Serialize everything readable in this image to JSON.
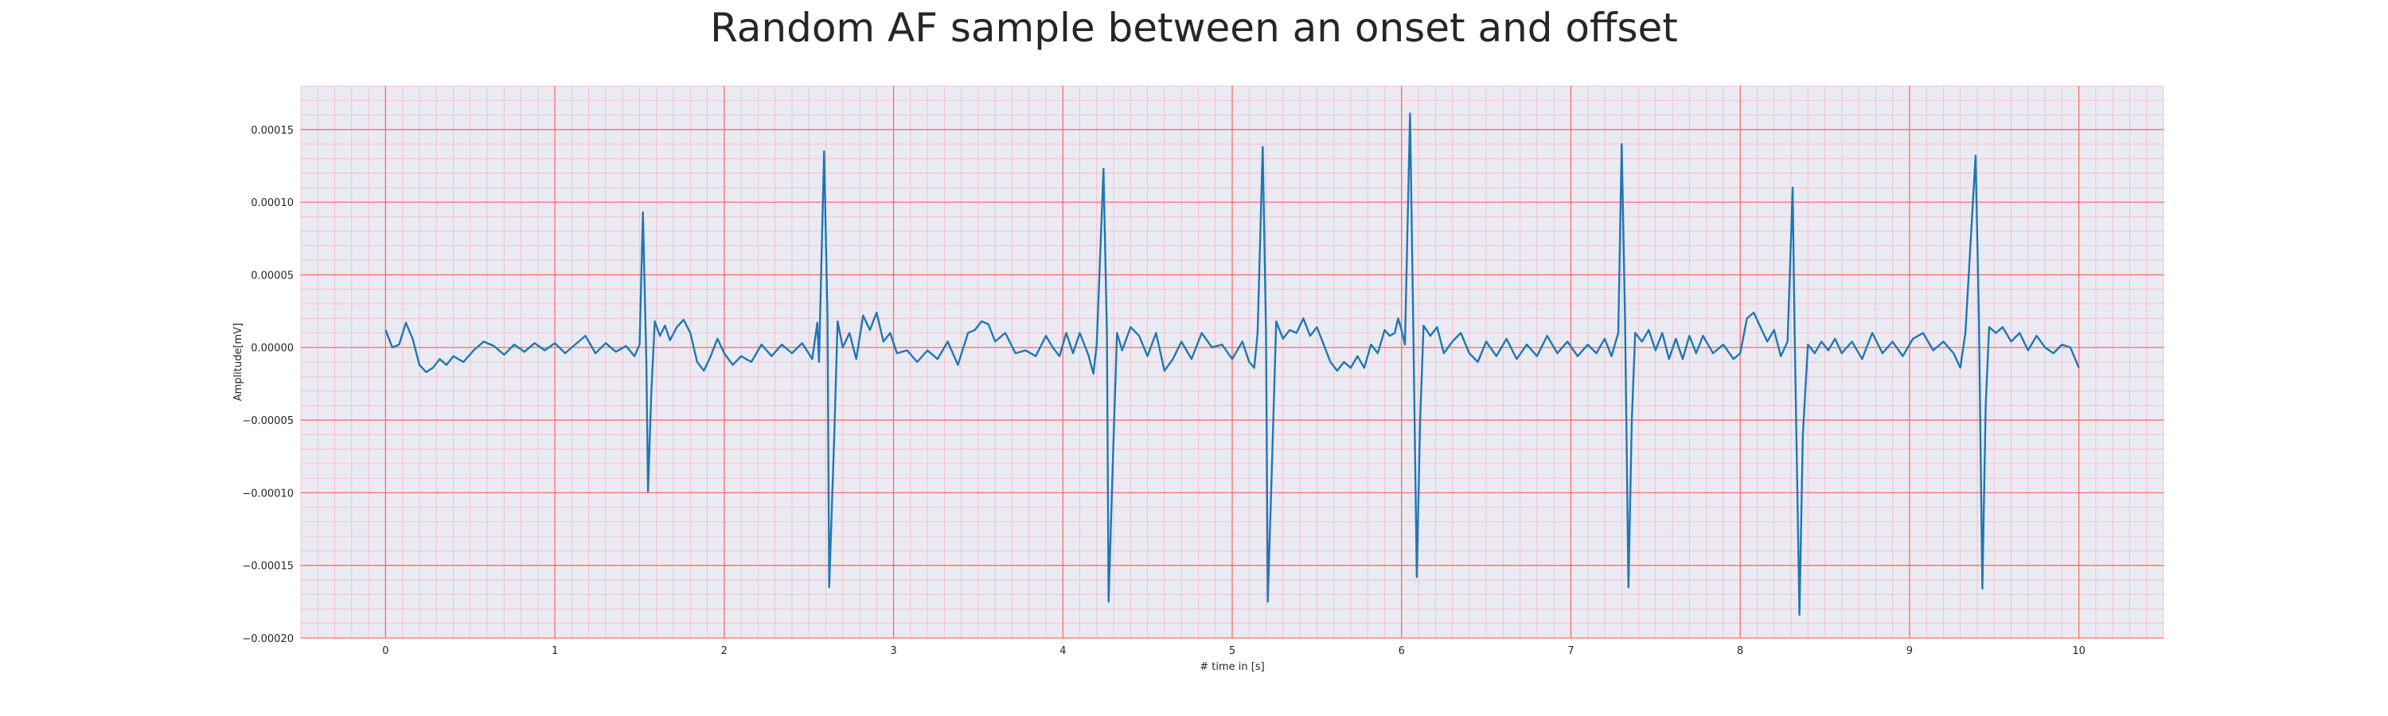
{
  "chart_data": {
    "type": "line",
    "title": "Random AF sample between an onset and offset",
    "xlabel": "# time in [s]",
    "ylabel": "Amplitude[mV]",
    "xlim": [
      -0.5,
      10.5
    ],
    "ylim": [
      -0.0002,
      0.00018
    ],
    "x_ticks": [
      "0",
      "1",
      "2",
      "3",
      "4",
      "5",
      "6",
      "7",
      "8",
      "9",
      "10"
    ],
    "y_ticks": [
      "0.00015",
      "0.00010",
      "0.00005",
      "0.00000",
      "−0.00005",
      "−0.00010",
      "−0.00015",
      "−0.00020"
    ],
    "grid": true,
    "minor_grid": true,
    "colors": {
      "background": "#eaeaf2",
      "major_grid": "#ff6b6b",
      "minor_grid": "#f6b8c4",
      "line": "#1f77b4"
    },
    "series": [
      {
        "points": [
          [
            0.0,
            1.2e-05
          ],
          [
            0.04,
            0.0
          ],
          [
            0.08,
            2e-06
          ],
          [
            0.12,
            1.7e-05
          ],
          [
            0.16,
            6e-06
          ],
          [
            0.2,
            -1.2e-05
          ],
          [
            0.24,
            -1.7e-05
          ],
          [
            0.28,
            -1.4e-05
          ],
          [
            0.32,
            -8e-06
          ],
          [
            0.36,
            -1.2e-05
          ],
          [
            0.4,
            -6e-06
          ],
          [
            0.46,
            -1e-05
          ],
          [
            0.52,
            -2e-06
          ],
          [
            0.58,
            4e-06
          ],
          [
            0.64,
            1e-06
          ],
          [
            0.7,
            -5e-06
          ],
          [
            0.76,
            2e-06
          ],
          [
            0.82,
            -3e-06
          ],
          [
            0.88,
            3e-06
          ],
          [
            0.94,
            -2e-06
          ],
          [
            1.0,
            3e-06
          ],
          [
            1.06,
            -4e-06
          ],
          [
            1.12,
            2e-06
          ],
          [
            1.18,
            8e-06
          ],
          [
            1.24,
            -4e-06
          ],
          [
            1.3,
            3e-06
          ],
          [
            1.36,
            -3e-06
          ],
          [
            1.42,
            1e-06
          ],
          [
            1.47,
            -6e-06
          ],
          [
            1.5,
            2e-06
          ],
          [
            1.52,
            9.3e-05
          ],
          [
            1.54,
            -1e-05
          ],
          [
            1.55,
            -9.9e-05
          ],
          [
            1.57,
            -3e-05
          ],
          [
            1.59,
            1.8e-05
          ],
          [
            1.62,
            8e-06
          ],
          [
            1.65,
            1.5e-05
          ],
          [
            1.68,
            5e-06
          ],
          [
            1.72,
            1.4e-05
          ],
          [
            1.76,
            1.9e-05
          ],
          [
            1.8,
            1e-05
          ],
          [
            1.84,
            -1e-05
          ],
          [
            1.88,
            -1.6e-05
          ],
          [
            1.92,
            -6e-06
          ],
          [
            1.96,
            6e-06
          ],
          [
            2.0,
            -4e-06
          ],
          [
            2.05,
            -1.2e-05
          ],
          [
            2.1,
            -6e-06
          ],
          [
            2.16,
            -1e-05
          ],
          [
            2.22,
            2e-06
          ],
          [
            2.28,
            -6e-06
          ],
          [
            2.34,
            2e-06
          ],
          [
            2.4,
            -4e-06
          ],
          [
            2.46,
            3e-06
          ],
          [
            2.52,
            -8e-06
          ],
          [
            2.55,
            1.7e-05
          ],
          [
            2.56,
            -1e-05
          ],
          [
            2.59,
            0.000135
          ],
          [
            2.61,
            2e-05
          ],
          [
            2.62,
            -0.000165
          ],
          [
            2.65,
            -6e-05
          ],
          [
            2.67,
            1.8e-05
          ],
          [
            2.7,
            0.0
          ],
          [
            2.74,
            1e-05
          ],
          [
            2.78,
            -8e-06
          ],
          [
            2.82,
            2.2e-05
          ],
          [
            2.86,
            1.2e-05
          ],
          [
            2.9,
            2.4e-05
          ],
          [
            2.94,
            4e-06
          ],
          [
            2.98,
            1e-05
          ],
          [
            3.02,
            -4e-06
          ],
          [
            3.08,
            -2e-06
          ],
          [
            3.14,
            -1e-05
          ],
          [
            3.2,
            -2e-06
          ],
          [
            3.26,
            -8e-06
          ],
          [
            3.32,
            4e-06
          ],
          [
            3.38,
            -1.2e-05
          ],
          [
            3.44,
            1e-05
          ],
          [
            3.48,
            1.2e-05
          ],
          [
            3.52,
            1.8e-05
          ],
          [
            3.56,
            1.6e-05
          ],
          [
            3.6,
            4e-06
          ],
          [
            3.66,
            1e-05
          ],
          [
            3.72,
            -4e-06
          ],
          [
            3.78,
            -2e-06
          ],
          [
            3.84,
            -6e-06
          ],
          [
            3.9,
            8e-06
          ],
          [
            3.94,
            0.0
          ],
          [
            3.98,
            -6e-06
          ],
          [
            4.02,
            1e-05
          ],
          [
            4.06,
            -4e-06
          ],
          [
            4.1,
            1e-05
          ],
          [
            4.15,
            -5e-06
          ],
          [
            4.18,
            -1.8e-05
          ],
          [
            4.2,
            2e-06
          ],
          [
            4.24,
            0.000123
          ],
          [
            4.26,
            1e-05
          ],
          [
            4.27,
            -0.000175
          ],
          [
            4.3,
            -6e-05
          ],
          [
            4.32,
            1e-05
          ],
          [
            4.35,
            -2e-06
          ],
          [
            4.4,
            1.4e-05
          ],
          [
            4.45,
            8e-06
          ],
          [
            4.5,
            -6e-06
          ],
          [
            4.55,
            1e-05
          ],
          [
            4.6,
            -1.6e-05
          ],
          [
            4.65,
            -8e-06
          ],
          [
            4.7,
            4e-06
          ],
          [
            4.76,
            -8e-06
          ],
          [
            4.82,
            1e-05
          ],
          [
            4.88,
            0.0
          ],
          [
            4.94,
            2e-06
          ],
          [
            5.0,
            -8e-06
          ],
          [
            5.06,
            4e-06
          ],
          [
            5.1,
            -1e-05
          ],
          [
            5.13,
            -1.4e-05
          ],
          [
            5.15,
            1e-05
          ],
          [
            5.18,
            0.000138
          ],
          [
            5.2,
            1e-05
          ],
          [
            5.21,
            -0.000175
          ],
          [
            5.24,
            -6e-05
          ],
          [
            5.26,
            1.8e-05
          ],
          [
            5.3,
            6e-06
          ],
          [
            5.34,
            1.2e-05
          ],
          [
            5.38,
            1e-05
          ],
          [
            5.42,
            2e-05
          ],
          [
            5.46,
            8e-06
          ],
          [
            5.5,
            1.4e-05
          ],
          [
            5.54,
            2e-06
          ],
          [
            5.58,
            -1e-05
          ],
          [
            5.62,
            -1.6e-05
          ],
          [
            5.66,
            -1e-05
          ],
          [
            5.7,
            -1.4e-05
          ],
          [
            5.74,
            -6e-06
          ],
          [
            5.78,
            -1.4e-05
          ],
          [
            5.82,
            2e-06
          ],
          [
            5.86,
            -4e-06
          ],
          [
            5.9,
            1.2e-05
          ],
          [
            5.93,
            8e-06
          ],
          [
            5.96,
            1e-05
          ],
          [
            5.98,
            2e-05
          ],
          [
            6.0,
            1.2e-05
          ],
          [
            6.02,
            2e-06
          ],
          [
            6.05,
            0.000161
          ],
          [
            6.07,
            1e-05
          ],
          [
            6.09,
            -0.000158
          ],
          [
            6.11,
            -5e-05
          ],
          [
            6.13,
            1.5e-05
          ],
          [
            6.17,
            8e-06
          ],
          [
            6.21,
            1.4e-05
          ],
          [
            6.25,
            -4e-06
          ],
          [
            6.3,
            4e-06
          ],
          [
            6.35,
            1e-05
          ],
          [
            6.4,
            -4e-06
          ],
          [
            6.45,
            -1e-05
          ],
          [
            6.5,
            4e-06
          ],
          [
            6.56,
            -6e-06
          ],
          [
            6.62,
            6e-06
          ],
          [
            6.68,
            -8e-06
          ],
          [
            6.74,
            2e-06
          ],
          [
            6.8,
            -6e-06
          ],
          [
            6.86,
            8e-06
          ],
          [
            6.92,
            -4e-06
          ],
          [
            6.98,
            4e-06
          ],
          [
            7.04,
            -6e-06
          ],
          [
            7.1,
            2e-06
          ],
          [
            7.15,
            -4e-06
          ],
          [
            7.2,
            6e-06
          ],
          [
            7.24,
            -6e-06
          ],
          [
            7.28,
            1e-05
          ],
          [
            7.3,
            0.00014
          ],
          [
            7.32,
            2e-05
          ],
          [
            7.34,
            -0.000165
          ],
          [
            7.36,
            -5e-05
          ],
          [
            7.38,
            1e-05
          ],
          [
            7.42,
            4e-06
          ],
          [
            7.46,
            1.2e-05
          ],
          [
            7.5,
            -2e-06
          ],
          [
            7.54,
            1e-05
          ],
          [
            7.58,
            -8e-06
          ],
          [
            7.62,
            6e-06
          ],
          [
            7.66,
            -8e-06
          ],
          [
            7.7,
            8e-06
          ],
          [
            7.74,
            -4e-06
          ],
          [
            7.78,
            8e-06
          ],
          [
            7.84,
            -4e-06
          ],
          [
            7.9,
            2e-06
          ],
          [
            7.96,
            -8e-06
          ],
          [
            8.0,
            -4e-06
          ],
          [
            8.04,
            2e-05
          ],
          [
            8.08,
            2.4e-05
          ],
          [
            8.12,
            1.4e-05
          ],
          [
            8.16,
            4e-06
          ],
          [
            8.2,
            1.2e-05
          ],
          [
            8.24,
            -6e-06
          ],
          [
            8.28,
            4e-06
          ],
          [
            8.31,
            0.00011
          ],
          [
            8.32,
            2e-05
          ],
          [
            8.35,
            -0.000184
          ],
          [
            8.37,
            -6e-05
          ],
          [
            8.4,
            2e-06
          ],
          [
            8.44,
            -4e-06
          ],
          [
            8.48,
            4e-06
          ],
          [
            8.52,
            -2e-06
          ],
          [
            8.56,
            6e-06
          ],
          [
            8.6,
            -4e-06
          ],
          [
            8.66,
            4e-06
          ],
          [
            8.72,
            -8e-06
          ],
          [
            8.78,
            1e-05
          ],
          [
            8.84,
            -4e-06
          ],
          [
            8.9,
            4e-06
          ],
          [
            8.96,
            -6e-06
          ],
          [
            9.02,
            6e-06
          ],
          [
            9.08,
            1e-05
          ],
          [
            9.14,
            -2e-06
          ],
          [
            9.2,
            4e-06
          ],
          [
            9.26,
            -4e-06
          ],
          [
            9.3,
            -1.4e-05
          ],
          [
            9.33,
            1e-05
          ],
          [
            9.39,
            0.000132
          ],
          [
            9.41,
            2e-05
          ],
          [
            9.43,
            -0.000166
          ],
          [
            9.45,
            -4e-05
          ],
          [
            9.47,
            1.4e-05
          ],
          [
            9.51,
            1e-05
          ],
          [
            9.55,
            1.4e-05
          ],
          [
            9.6,
            4e-06
          ],
          [
            9.65,
            1e-05
          ],
          [
            9.7,
            -2e-06
          ],
          [
            9.75,
            8e-06
          ],
          [
            9.8,
            0.0
          ],
          [
            9.85,
            -4e-06
          ],
          [
            9.9,
            2e-06
          ],
          [
            9.95,
            0.0
          ],
          [
            10.0,
            -1.4e-05
          ]
        ]
      }
    ]
  }
}
